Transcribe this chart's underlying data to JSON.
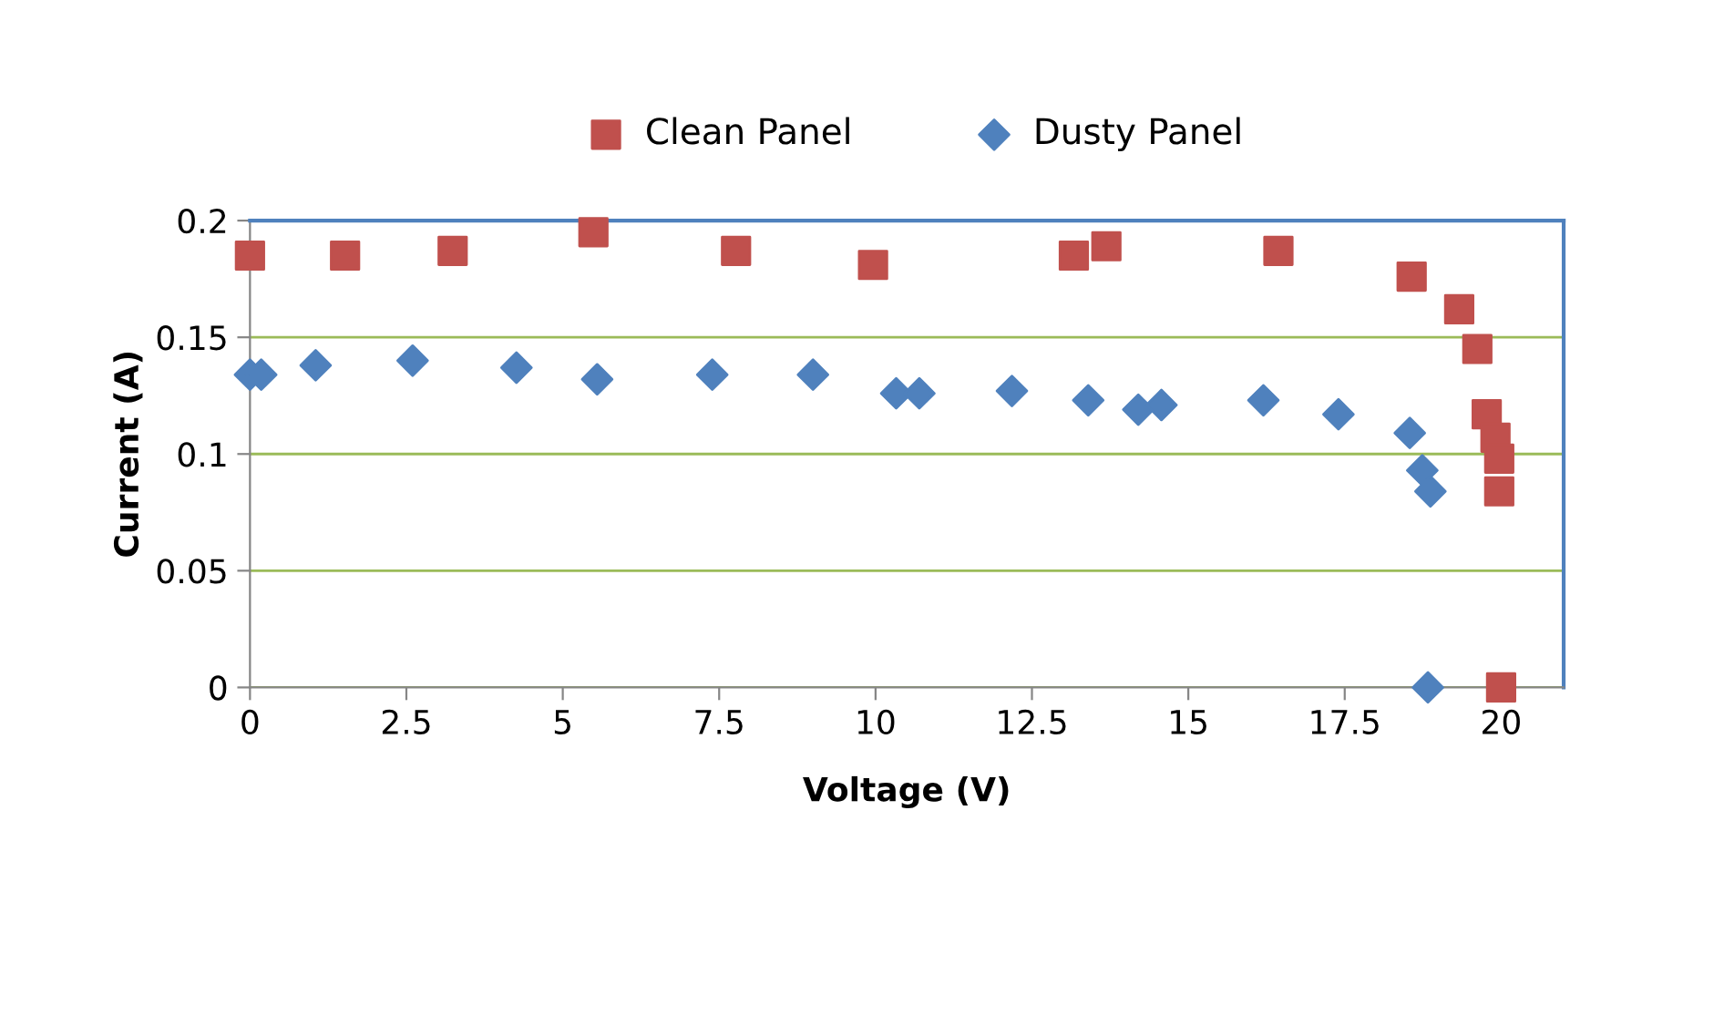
{
  "chart_data": {
    "type": "scatter",
    "xlabel": "Voltage (V)",
    "ylabel": "Current (A)",
    "xlim": [
      0,
      21
    ],
    "xticks": [
      0,
      {
        "value": 2.5,
        "label": "2.5"
      },
      5,
      {
        "value": 7.5,
        "label": "7.5"
      },
      10,
      {
        "value": 12.5,
        "label": "12.5"
      },
      15,
      {
        "value": 17.5,
        "label": "17.5"
      },
      20
    ],
    "ylim": [
      0,
      0.2
    ],
    "yticks": [
      0,
      0.05,
      0.1,
      0.15,
      0.2
    ],
    "grid": "y",
    "legend": "top",
    "series": [
      {
        "name": "Clean Panel",
        "color": "#c0504d",
        "marker": "square",
        "x": [
          0,
          1.52,
          3.24,
          5.49,
          7.77,
          9.96,
          13.17,
          13.69,
          16.44,
          18.57,
          19.33,
          19.62,
          19.77,
          19.91,
          19.97,
          19.97,
          20.0
        ],
        "values": [
          0.185,
          0.185,
          0.187,
          0.195,
          0.187,
          0.181,
          0.185,
          0.189,
          0.187,
          0.176,
          0.162,
          0.145,
          0.117,
          0.107,
          0.098,
          0.084,
          0
        ]
      },
      {
        "name": "Dusty Panel",
        "color": "#4f81bd",
        "marker": "diamond",
        "x": [
          0,
          0.18,
          1.05,
          2.6,
          4.26,
          5.55,
          7.39,
          9.0,
          10.33,
          10.7,
          12.18,
          13.4,
          14.2,
          14.57,
          16.2,
          17.4,
          18.54,
          18.74,
          18.87,
          18.83
        ],
        "values": [
          0.134,
          0.134,
          0.138,
          0.14,
          0.137,
          0.132,
          0.134,
          0.134,
          0.126,
          0.126,
          0.127,
          0.123,
          0.119,
          0.121,
          0.123,
          0.117,
          0.109,
          0.093,
          0.084,
          0
        ]
      }
    ]
  }
}
